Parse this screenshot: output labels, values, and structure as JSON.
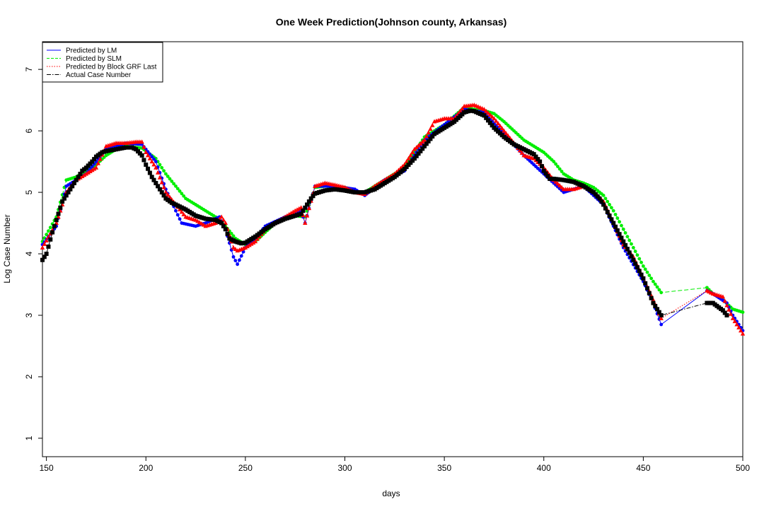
{
  "chart_data": {
    "type": "line",
    "title": "One Week Prediction(Johnson county, Arkansas)",
    "xlabel": "days",
    "ylabel": "Log Case Number",
    "xlim": [
      148,
      500
    ],
    "ylim": [
      0.7,
      7.45
    ],
    "xticks": [
      150,
      200,
      250,
      300,
      350,
      400,
      450,
      500
    ],
    "yticks": [
      1,
      2,
      3,
      4,
      5,
      6,
      7
    ],
    "grid": false,
    "legend_position": "top-left",
    "series": [
      {
        "name": "Predicted by LM",
        "color": "#0000ff",
        "line_style": "solid",
        "marker": "circle",
        "points": [
          [
            148,
            4.15
          ],
          [
            155,
            4.45
          ],
          [
            160,
            5.1
          ],
          [
            170,
            5.3
          ],
          [
            180,
            5.7
          ],
          [
            190,
            5.8
          ],
          [
            198,
            5.78
          ],
          [
            205,
            5.5
          ],
          [
            210,
            5.05
          ],
          [
            215,
            4.7
          ],
          [
            218,
            4.5
          ],
          [
            225,
            4.45
          ],
          [
            230,
            4.5
          ],
          [
            237,
            4.6
          ],
          [
            240,
            4.4
          ],
          [
            244,
            3.95
          ],
          [
            246,
            3.83
          ],
          [
            250,
            4.1
          ],
          [
            255,
            4.25
          ],
          [
            260,
            4.45
          ],
          [
            270,
            4.6
          ],
          [
            278,
            4.7
          ],
          [
            280,
            4.5
          ],
          [
            285,
            5.1
          ],
          [
            295,
            5.1
          ],
          [
            305,
            5.05
          ],
          [
            310,
            4.95
          ],
          [
            320,
            5.2
          ],
          [
            330,
            5.35
          ],
          [
            340,
            5.85
          ],
          [
            350,
            6.1
          ],
          [
            360,
            6.35
          ],
          [
            370,
            6.3
          ],
          [
            380,
            5.95
          ],
          [
            390,
            5.6
          ],
          [
            400,
            5.3
          ],
          [
            410,
            5.0
          ],
          [
            420,
            5.1
          ],
          [
            430,
            4.8
          ],
          [
            440,
            4.1
          ],
          [
            450,
            3.55
          ],
          [
            455,
            3.2
          ],
          [
            459,
            2.85
          ],
          [
            482,
            3.4
          ],
          [
            485,
            3.35
          ],
          [
            492,
            3.2
          ],
          [
            495,
            3.0
          ],
          [
            500,
            2.75
          ]
        ]
      },
      {
        "name": "Predicted by SLM",
        "color": "#00ee00",
        "line_style": "dashed",
        "marker": "circle",
        "points": [
          [
            148,
            4.2
          ],
          [
            155,
            4.6
          ],
          [
            160,
            5.2
          ],
          [
            165,
            5.25
          ],
          [
            170,
            5.35
          ],
          [
            175,
            5.45
          ],
          [
            180,
            5.6
          ],
          [
            185,
            5.7
          ],
          [
            190,
            5.75
          ],
          [
            198,
            5.72
          ],
          [
            205,
            5.55
          ],
          [
            210,
            5.3
          ],
          [
            215,
            5.1
          ],
          [
            220,
            4.9
          ],
          [
            225,
            4.8
          ],
          [
            230,
            4.7
          ],
          [
            235,
            4.6
          ],
          [
            240,
            4.45
          ],
          [
            245,
            4.25
          ],
          [
            250,
            4.15
          ],
          [
            255,
            4.2
          ],
          [
            260,
            4.35
          ],
          [
            265,
            4.5
          ],
          [
            270,
            4.58
          ],
          [
            275,
            4.62
          ],
          [
            280,
            4.6
          ],
          [
            285,
            5.08
          ],
          [
            290,
            5.1
          ],
          [
            300,
            5.08
          ],
          [
            305,
            5.0
          ],
          [
            310,
            5.0
          ],
          [
            315,
            5.1
          ],
          [
            320,
            5.2
          ],
          [
            330,
            5.4
          ],
          [
            340,
            5.9
          ],
          [
            350,
            6.1
          ],
          [
            360,
            6.38
          ],
          [
            365,
            6.35
          ],
          [
            370,
            6.33
          ],
          [
            375,
            6.28
          ],
          [
            380,
            6.15
          ],
          [
            385,
            6.0
          ],
          [
            390,
            5.85
          ],
          [
            395,
            5.75
          ],
          [
            400,
            5.65
          ],
          [
            405,
            5.5
          ],
          [
            410,
            5.3
          ],
          [
            415,
            5.2
          ],
          [
            420,
            5.15
          ],
          [
            425,
            5.08
          ],
          [
            430,
            4.95
          ],
          [
            435,
            4.7
          ],
          [
            440,
            4.4
          ],
          [
            445,
            4.1
          ],
          [
            450,
            3.8
          ],
          [
            455,
            3.55
          ],
          [
            459,
            3.37
          ],
          [
            482,
            3.45
          ],
          [
            485,
            3.35
          ],
          [
            490,
            3.25
          ],
          [
            495,
            3.1
          ],
          [
            500,
            3.05
          ]
        ]
      },
      {
        "name": "Predicted by Block GRF Last",
        "color": "#ff0000",
        "line_style": "dotted",
        "marker": "triangle",
        "points": [
          [
            148,
            4.1
          ],
          [
            155,
            4.5
          ],
          [
            160,
            5.0
          ],
          [
            165,
            5.2
          ],
          [
            170,
            5.3
          ],
          [
            175,
            5.4
          ],
          [
            180,
            5.75
          ],
          [
            185,
            5.8
          ],
          [
            190,
            5.8
          ],
          [
            195,
            5.82
          ],
          [
            198,
            5.82
          ],
          [
            200,
            5.65
          ],
          [
            205,
            5.4
          ],
          [
            210,
            5.0
          ],
          [
            215,
            4.8
          ],
          [
            220,
            4.6
          ],
          [
            225,
            4.55
          ],
          [
            230,
            4.45
          ],
          [
            235,
            4.5
          ],
          [
            238,
            4.6
          ],
          [
            240,
            4.5
          ],
          [
            244,
            4.1
          ],
          [
            246,
            4.05
          ],
          [
            250,
            4.1
          ],
          [
            255,
            4.2
          ],
          [
            260,
            4.4
          ],
          [
            265,
            4.5
          ],
          [
            270,
            4.6
          ],
          [
            275,
            4.7
          ],
          [
            278,
            4.75
          ],
          [
            280,
            4.5
          ],
          [
            285,
            5.1
          ],
          [
            290,
            5.15
          ],
          [
            295,
            5.12
          ],
          [
            300,
            5.08
          ],
          [
            305,
            5.0
          ],
          [
            310,
            4.97
          ],
          [
            315,
            5.1
          ],
          [
            320,
            5.2
          ],
          [
            325,
            5.3
          ],
          [
            330,
            5.45
          ],
          [
            335,
            5.7
          ],
          [
            340,
            5.85
          ],
          [
            345,
            6.15
          ],
          [
            350,
            6.2
          ],
          [
            355,
            6.2
          ],
          [
            360,
            6.4
          ],
          [
            365,
            6.42
          ],
          [
            370,
            6.35
          ],
          [
            375,
            6.2
          ],
          [
            380,
            6.0
          ],
          [
            385,
            5.8
          ],
          [
            390,
            5.6
          ],
          [
            395,
            5.55
          ],
          [
            400,
            5.4
          ],
          [
            405,
            5.2
          ],
          [
            410,
            5.05
          ],
          [
            415,
            5.05
          ],
          [
            420,
            5.1
          ],
          [
            425,
            5.0
          ],
          [
            430,
            4.85
          ],
          [
            435,
            4.5
          ],
          [
            440,
            4.15
          ],
          [
            445,
            3.95
          ],
          [
            450,
            3.6
          ],
          [
            455,
            3.25
          ],
          [
            459,
            2.95
          ],
          [
            482,
            3.4
          ],
          [
            485,
            3.35
          ],
          [
            490,
            3.3
          ],
          [
            495,
            2.95
          ],
          [
            500,
            2.7
          ]
        ]
      },
      {
        "name": "Actual Case Number",
        "color": "#000000",
        "line_style": "dashdot",
        "marker": "square",
        "points": [
          [
            148,
            3.9
          ],
          [
            150,
            4.0
          ],
          [
            153,
            4.35
          ],
          [
            155,
            4.55
          ],
          [
            158,
            4.85
          ],
          [
            160,
            4.95
          ],
          [
            163,
            5.1
          ],
          [
            165,
            5.2
          ],
          [
            168,
            5.35
          ],
          [
            170,
            5.4
          ],
          [
            173,
            5.5
          ],
          [
            175,
            5.58
          ],
          [
            178,
            5.65
          ],
          [
            180,
            5.67
          ],
          [
            185,
            5.7
          ],
          [
            190,
            5.73
          ],
          [
            193,
            5.73
          ],
          [
            195,
            5.7
          ],
          [
            198,
            5.6
          ],
          [
            200,
            5.45
          ],
          [
            203,
            5.25
          ],
          [
            205,
            5.15
          ],
          [
            208,
            5.0
          ],
          [
            210,
            4.9
          ],
          [
            213,
            4.83
          ],
          [
            215,
            4.8
          ],
          [
            220,
            4.72
          ],
          [
            225,
            4.62
          ],
          [
            230,
            4.57
          ],
          [
            235,
            4.55
          ],
          [
            238,
            4.5
          ],
          [
            240,
            4.4
          ],
          [
            242,
            4.25
          ],
          [
            245,
            4.2
          ],
          [
            248,
            4.17
          ],
          [
            250,
            4.18
          ],
          [
            255,
            4.28
          ],
          [
            260,
            4.4
          ],
          [
            265,
            4.5
          ],
          [
            270,
            4.57
          ],
          [
            275,
            4.62
          ],
          [
            278,
            4.65
          ],
          [
            280,
            4.75
          ],
          [
            283,
            4.9
          ],
          [
            285,
            4.98
          ],
          [
            290,
            5.03
          ],
          [
            295,
            5.05
          ],
          [
            300,
            5.03
          ],
          [
            305,
            5.0
          ],
          [
            310,
            5.0
          ],
          [
            315,
            5.05
          ],
          [
            320,
            5.15
          ],
          [
            325,
            5.25
          ],
          [
            330,
            5.38
          ],
          [
            335,
            5.55
          ],
          [
            340,
            5.75
          ],
          [
            345,
            5.95
          ],
          [
            350,
            6.05
          ],
          [
            355,
            6.15
          ],
          [
            360,
            6.3
          ],
          [
            363,
            6.33
          ],
          [
            365,
            6.32
          ],
          [
            370,
            6.25
          ],
          [
            375,
            6.05
          ],
          [
            380,
            5.9
          ],
          [
            385,
            5.78
          ],
          [
            390,
            5.7
          ],
          [
            395,
            5.62
          ],
          [
            398,
            5.5
          ],
          [
            400,
            5.35
          ],
          [
            403,
            5.22
          ],
          [
            405,
            5.22
          ],
          [
            410,
            5.2
          ],
          [
            415,
            5.17
          ],
          [
            420,
            5.1
          ],
          [
            425,
            5.0
          ],
          [
            428,
            4.9
          ],
          [
            430,
            4.8
          ],
          [
            435,
            4.5
          ],
          [
            440,
            4.2
          ],
          [
            445,
            3.9
          ],
          [
            450,
            3.6
          ],
          [
            455,
            3.2
          ],
          [
            459,
            3.0
          ],
          [
            482,
            3.2
          ],
          [
            485,
            3.2
          ],
          [
            490,
            3.08
          ],
          [
            492,
            3.0
          ]
        ]
      }
    ]
  }
}
